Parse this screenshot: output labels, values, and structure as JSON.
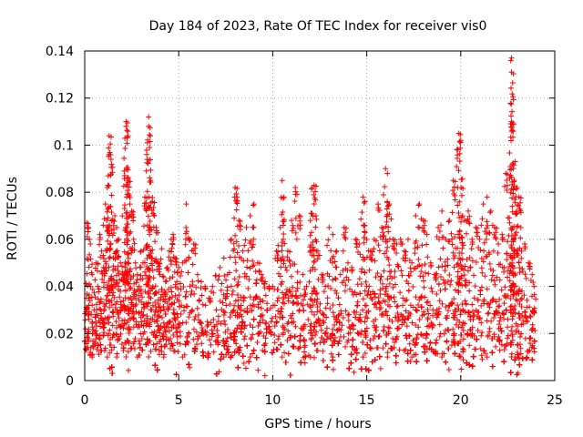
{
  "chart_data": {
    "type": "scatter",
    "title": "Day 184 of 2023, Rate Of TEC Index for receiver vis0",
    "xlabel": "GPS time / hours",
    "ylabel": "ROTI / TECUs",
    "xlim": [
      0,
      25
    ],
    "ylim": [
      0,
      0.14
    ],
    "xticks": [
      0,
      5,
      10,
      15,
      20,
      25
    ],
    "xtick_labels": [
      "0",
      "5",
      "10",
      "15",
      "20",
      "25"
    ],
    "yticks": [
      0,
      0.02,
      0.04,
      0.06,
      0.08,
      0.1,
      0.12,
      0.14
    ],
    "ytick_labels": [
      "0",
      "0.02",
      "0.04",
      "0.06",
      "0.08",
      "0.1",
      "0.12",
      "0.14"
    ],
    "grid": true,
    "marker": "plus",
    "color": "#ff0000",
    "series": [
      {
        "name": "ROTI",
        "points": [
          [
            0.1,
            0.067
          ],
          [
            0.2,
            0.065
          ],
          [
            0.3,
            0.058
          ],
          [
            0.4,
            0.045
          ],
          [
            0.1,
            0.035
          ],
          [
            0.2,
            0.02
          ],
          [
            0.3,
            0.012
          ],
          [
            0.5,
            0.03
          ],
          [
            0.6,
            0.05
          ],
          [
            0.7,
            0.04
          ],
          [
            0.8,
            0.062
          ],
          [
            0.9,
            0.055
          ],
          [
            1.0,
            0.048
          ],
          [
            1.1,
            0.075
          ],
          [
            1.2,
            0.082
          ],
          [
            1.3,
            0.096
          ],
          [
            1.3,
            0.104
          ],
          [
            1.4,
            0.094
          ],
          [
            1.5,
            0.068
          ],
          [
            1.6,
            0.07
          ],
          [
            1.7,
            0.065
          ],
          [
            1.8,
            0.06
          ],
          [
            1.9,
            0.05
          ],
          [
            2.0,
            0.045
          ],
          [
            2.1,
            0.089
          ],
          [
            2.2,
            0.11
          ],
          [
            2.2,
            0.108
          ],
          [
            2.3,
            0.104
          ],
          [
            2.3,
            0.085
          ],
          [
            2.4,
            0.075
          ],
          [
            2.5,
            0.072
          ],
          [
            2.6,
            0.06
          ],
          [
            2.7,
            0.05
          ],
          [
            2.8,
            0.045
          ],
          [
            2.9,
            0.04
          ],
          [
            3.0,
            0.055
          ],
          [
            3.1,
            0.05
          ],
          [
            3.2,
            0.078
          ],
          [
            3.3,
            0.096
          ],
          [
            3.4,
            0.108
          ],
          [
            3.4,
            0.112
          ],
          [
            3.5,
            0.085
          ],
          [
            3.6,
            0.076
          ],
          [
            3.7,
            0.07
          ],
          [
            3.8,
            0.065
          ],
          [
            3.9,
            0.05
          ],
          [
            4.0,
            0.045
          ],
          [
            4.1,
            0.056
          ],
          [
            4.2,
            0.044
          ],
          [
            4.3,
            0.042
          ],
          [
            4.4,
            0.048
          ],
          [
            4.5,
            0.055
          ],
          [
            4.6,
            0.06
          ],
          [
            4.7,
            0.062
          ],
          [
            4.8,
            0.052
          ],
          [
            4.9,
            0.042
          ],
          [
            5.0,
            0.048
          ],
          [
            5.2,
            0.05
          ],
          [
            5.4,
            0.075
          ],
          [
            5.6,
            0.06
          ],
          [
            5.8,
            0.058
          ],
          [
            6.0,
            0.045
          ],
          [
            6.2,
            0.042
          ],
          [
            6.4,
            0.04
          ],
          [
            6.6,
            0.035
          ],
          [
            6.8,
            0.04
          ],
          [
            7.0,
            0.03
          ],
          [
            7.2,
            0.048
          ],
          [
            7.4,
            0.052
          ],
          [
            7.6,
            0.045
          ],
          [
            7.8,
            0.06
          ],
          [
            8.0,
            0.082
          ],
          [
            8.1,
            0.078
          ],
          [
            8.2,
            0.068
          ],
          [
            8.4,
            0.055
          ],
          [
            8.6,
            0.065
          ],
          [
            8.8,
            0.07
          ],
          [
            9.0,
            0.075
          ],
          [
            9.2,
            0.05
          ],
          [
            9.4,
            0.045
          ],
          [
            9.6,
            0.042
          ],
          [
            9.8,
            0.04
          ],
          [
            10.0,
            0.04
          ],
          [
            10.2,
            0.055
          ],
          [
            10.4,
            0.065
          ],
          [
            10.5,
            0.085
          ],
          [
            10.6,
            0.078
          ],
          [
            10.8,
            0.055
          ],
          [
            11.0,
            0.068
          ],
          [
            11.2,
            0.082
          ],
          [
            11.4,
            0.07
          ],
          [
            11.6,
            0.045
          ],
          [
            11.8,
            0.04
          ],
          [
            12.0,
            0.068
          ],
          [
            12.1,
            0.082
          ],
          [
            12.2,
            0.083
          ],
          [
            12.3,
            0.07
          ],
          [
            12.4,
            0.055
          ],
          [
            12.6,
            0.045
          ],
          [
            12.8,
            0.04
          ],
          [
            13.0,
            0.065
          ],
          [
            13.2,
            0.062
          ],
          [
            13.4,
            0.055
          ],
          [
            13.6,
            0.045
          ],
          [
            13.8,
            0.065
          ],
          [
            14.0,
            0.05
          ],
          [
            14.2,
            0.048
          ],
          [
            14.4,
            0.06
          ],
          [
            14.6,
            0.058
          ],
          [
            14.8,
            0.078
          ],
          [
            14.9,
            0.076
          ],
          [
            15.0,
            0.06
          ],
          [
            15.2,
            0.055
          ],
          [
            15.4,
            0.06
          ],
          [
            15.6,
            0.075
          ],
          [
            15.8,
            0.065
          ],
          [
            16.0,
            0.09
          ],
          [
            16.1,
            0.088
          ],
          [
            16.2,
            0.075
          ],
          [
            16.4,
            0.06
          ],
          [
            16.6,
            0.058
          ],
          [
            16.8,
            0.06
          ],
          [
            17.0,
            0.055
          ],
          [
            17.2,
            0.06
          ],
          [
            17.4,
            0.05
          ],
          [
            17.6,
            0.07
          ],
          [
            17.8,
            0.075
          ],
          [
            18.0,
            0.068
          ],
          [
            18.2,
            0.062
          ],
          [
            18.4,
            0.05
          ],
          [
            18.6,
            0.045
          ],
          [
            18.8,
            0.065
          ],
          [
            19.0,
            0.072
          ],
          [
            19.2,
            0.06
          ],
          [
            19.4,
            0.068
          ],
          [
            19.6,
            0.085
          ],
          [
            19.8,
            0.098
          ],
          [
            19.9,
            0.105
          ],
          [
            20.0,
            0.102
          ],
          [
            20.1,
            0.07
          ],
          [
            20.2,
            0.068
          ],
          [
            20.4,
            0.072
          ],
          [
            20.6,
            0.06
          ],
          [
            20.8,
            0.065
          ],
          [
            21.0,
            0.06
          ],
          [
            21.2,
            0.075
          ],
          [
            21.4,
            0.078
          ],
          [
            21.6,
            0.072
          ],
          [
            21.8,
            0.065
          ],
          [
            22.0,
            0.058
          ],
          [
            22.2,
            0.062
          ],
          [
            22.4,
            0.088
          ],
          [
            22.6,
            0.067
          ],
          [
            22.7,
            0.137
          ],
          [
            22.7,
            0.131
          ],
          [
            22.7,
            0.11
          ],
          [
            22.8,
            0.09
          ],
          [
            22.9,
            0.093
          ],
          [
            23.0,
            0.082
          ],
          [
            23.1,
            0.078
          ],
          [
            23.2,
            0.065
          ],
          [
            23.4,
            0.058
          ],
          [
            23.6,
            0.05
          ],
          [
            23.8,
            0.045
          ],
          [
            23.9,
            0.04
          ]
        ]
      }
    ]
  }
}
